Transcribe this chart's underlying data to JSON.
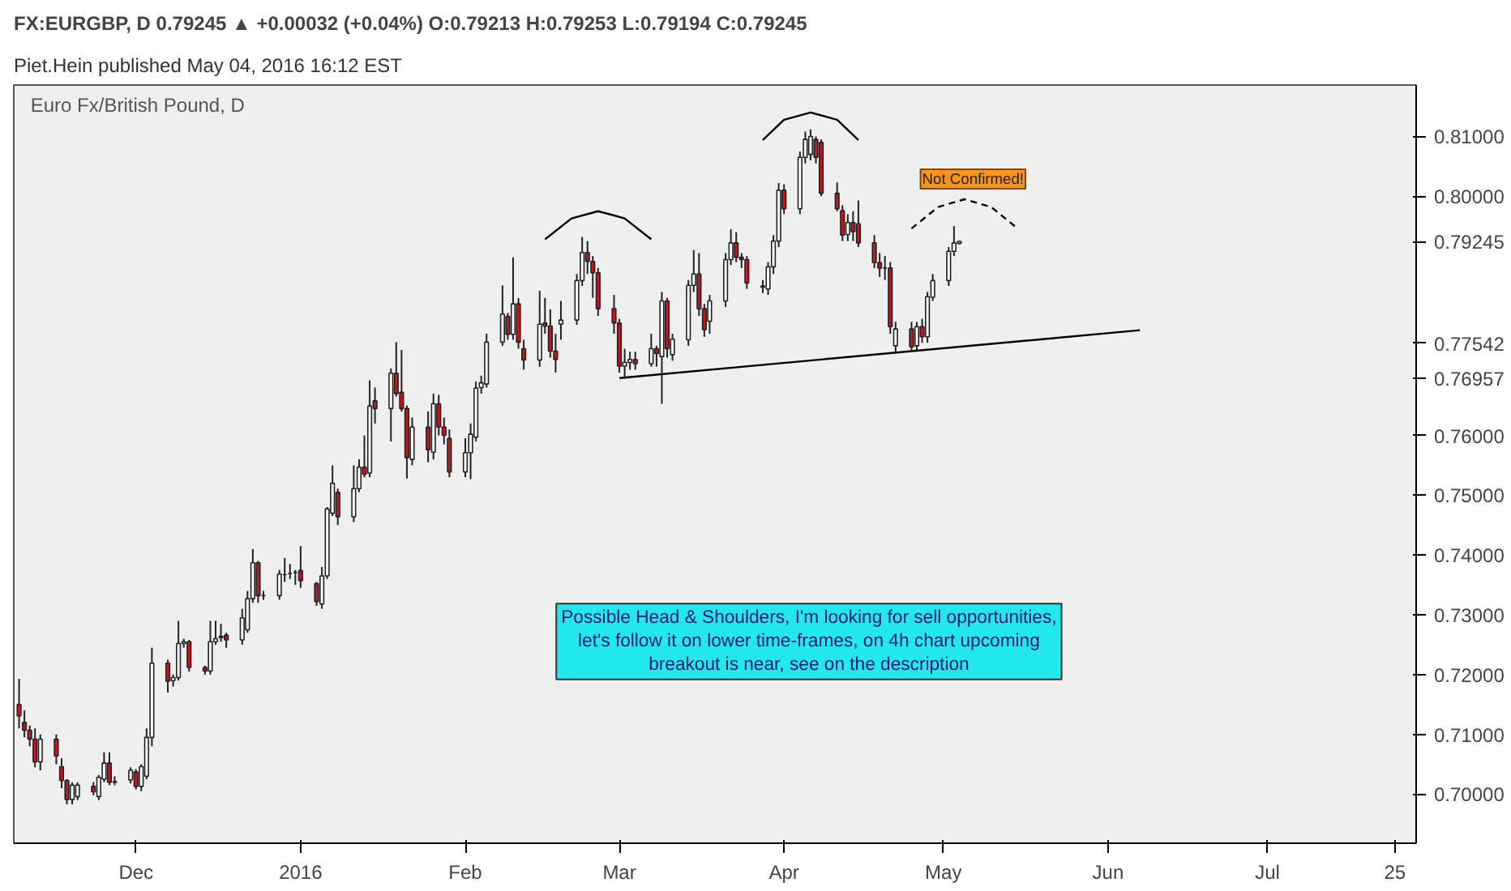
{
  "chart_data": {
    "type": "candlestick",
    "title": "FX:EURGBP, D  0.79245 ▲ +0.00032 (+0.04%)  O:0.79213  H:0.79253  L:0.79194  C:0.79245",
    "subtitle": "Euro Fx/British Pound, D",
    "x": [
      "2015-11-09",
      "2015-11-10",
      "2015-11-11",
      "2015-11-12",
      "2015-11-13",
      "2015-11-16",
      "2015-11-17",
      "2015-11-18",
      "2015-11-19",
      "2015-11-20",
      "2015-11-23",
      "2015-11-24",
      "2015-11-25",
      "2015-11-26",
      "2015-11-27",
      "2015-11-30",
      "2015-12-01",
      "2015-12-02",
      "2015-12-03",
      "2015-12-04",
      "2015-12-07",
      "2015-12-08",
      "2015-12-09",
      "2015-12-10",
      "2015-12-11",
      "2015-12-14",
      "2015-12-15",
      "2015-12-16",
      "2015-12-17",
      "2015-12-18",
      "2015-12-21",
      "2015-12-22",
      "2015-12-23",
      "2015-12-24",
      "2015-12-25",
      "2015-12-28",
      "2015-12-29",
      "2015-12-30",
      "2015-12-31",
      "2016-01-01",
      "2016-01-04",
      "2016-01-05",
      "2016-01-06",
      "2016-01-07",
      "2016-01-08",
      "2016-01-11",
      "2016-01-12",
      "2016-01-13",
      "2016-01-14",
      "2016-01-15",
      "2016-01-18",
      "2016-01-19",
      "2016-01-20",
      "2016-01-21",
      "2016-01-22",
      "2016-01-25",
      "2016-01-26",
      "2016-01-27",
      "2016-01-28",
      "2016-01-29",
      "2016-02-01",
      "2016-02-02",
      "2016-02-03",
      "2016-02-04",
      "2016-02-05",
      "2016-02-08",
      "2016-02-09",
      "2016-02-10",
      "2016-02-11",
      "2016-02-12",
      "2016-02-15",
      "2016-02-16",
      "2016-02-17",
      "2016-02-18",
      "2016-02-19",
      "2016-02-22",
      "2016-02-23",
      "2016-02-24",
      "2016-02-25",
      "2016-02-26",
      "2016-02-29",
      "2016-03-01",
      "2016-03-02",
      "2016-03-03",
      "2016-03-04",
      "2016-03-07",
      "2016-03-08",
      "2016-03-09",
      "2016-03-10",
      "2016-03-11",
      "2016-03-14",
      "2016-03-15",
      "2016-03-16",
      "2016-03-17",
      "2016-03-18",
      "2016-03-21",
      "2016-03-22",
      "2016-03-23",
      "2016-03-24",
      "2016-03-25",
      "2016-03-28",
      "2016-03-29",
      "2016-03-30",
      "2016-03-31",
      "2016-04-01",
      "2016-04-04",
      "2016-04-05",
      "2016-04-06",
      "2016-04-07",
      "2016-04-08",
      "2016-04-11",
      "2016-04-12",
      "2016-04-13",
      "2016-04-14",
      "2016-04-15",
      "2016-04-18",
      "2016-04-19",
      "2016-04-20",
      "2016-04-21",
      "2016-04-22",
      "2016-04-25",
      "2016-04-26",
      "2016-04-27",
      "2016-04-28",
      "2016-04-29",
      "2016-05-02",
      "2016-05-03",
      "2016-05-04"
    ],
    "ohlc": [
      [
        0.715,
        0.7193,
        0.711,
        0.7131
      ],
      [
        0.712,
        0.714,
        0.7095,
        0.7107
      ],
      [
        0.7107,
        0.7115,
        0.708,
        0.7092
      ],
      [
        0.7092,
        0.711,
        0.7045,
        0.7054
      ],
      [
        0.7054,
        0.71,
        0.704,
        0.7092
      ],
      [
        0.7092,
        0.71,
        0.705,
        0.7064
      ],
      [
        0.7046,
        0.706,
        0.701,
        0.7023
      ],
      [
        0.7023,
        0.7025,
        0.6983,
        0.6991
      ],
      [
        0.6991,
        0.702,
        0.6983,
        0.7015
      ],
      [
        0.6996,
        0.702,
        0.699,
        0.7015
      ],
      [
        0.7013,
        0.702,
        0.6998,
        0.7004
      ],
      [
        0.6996,
        0.7032,
        0.699,
        0.7028
      ],
      [
        0.7025,
        0.707,
        0.702,
        0.7052
      ],
      [
        0.7052,
        0.707,
        0.7015,
        0.702
      ],
      [
        0.7021,
        0.703,
        0.7015,
        0.702
      ],
      [
        0.7024,
        0.7045,
        0.7018,
        0.704
      ],
      [
        0.7037,
        0.7042,
        0.7008,
        0.7013
      ],
      [
        0.7013,
        0.705,
        0.7005,
        0.7046
      ],
      [
        0.703,
        0.711,
        0.7025,
        0.7095
      ],
      [
        0.7095,
        0.7245,
        0.708,
        0.7219
      ],
      [
        0.7219,
        0.7225,
        0.717,
        0.7189
      ],
      [
        0.719,
        0.72,
        0.718,
        0.7195
      ],
      [
        0.7195,
        0.729,
        0.719,
        0.7252
      ],
      [
        0.7252,
        0.726,
        0.7245,
        0.7255
      ],
      [
        0.7255,
        0.7258,
        0.7205,
        0.7212
      ],
      [
        0.7212,
        0.7215,
        0.72,
        0.7206
      ],
      [
        0.7206,
        0.729,
        0.72,
        0.7255
      ],
      [
        0.7255,
        0.729,
        0.725,
        0.726
      ],
      [
        0.7262,
        0.7285,
        0.7255,
        0.7264
      ],
      [
        0.7266,
        0.727,
        0.7245,
        0.7258
      ],
      [
        0.7258,
        0.731,
        0.725,
        0.7295
      ],
      [
        0.7275,
        0.734,
        0.727,
        0.7327
      ],
      [
        0.7327,
        0.741,
        0.732,
        0.7387
      ],
      [
        0.7387,
        0.739,
        0.732,
        0.7332
      ],
      [
        0.7332,
        0.734,
        0.7325,
        0.7332
      ],
      [
        0.7332,
        0.7375,
        0.7325,
        0.7368
      ],
      [
        0.7367,
        0.7395,
        0.7355,
        0.7367
      ],
      [
        0.7369,
        0.7385,
        0.736,
        0.7369
      ],
      [
        0.7371,
        0.7375,
        0.735,
        0.7371
      ],
      [
        0.7374,
        0.7415,
        0.7345,
        0.7357
      ],
      [
        0.7352,
        0.7355,
        0.7315,
        0.7322
      ],
      [
        0.7318,
        0.738,
        0.731,
        0.7365
      ],
      [
        0.7365,
        0.748,
        0.736,
        0.7477
      ],
      [
        0.747,
        0.755,
        0.7465,
        0.752
      ],
      [
        0.7505,
        0.7511,
        0.745,
        0.7464
      ],
      [
        0.7464,
        0.755,
        0.7455,
        0.7511
      ],
      [
        0.7511,
        0.756,
        0.7505,
        0.7547
      ],
      [
        0.7547,
        0.76,
        0.753,
        0.7535
      ],
      [
        0.7537,
        0.7692,
        0.753,
        0.7649
      ],
      [
        0.7658,
        0.768,
        0.762,
        0.7645
      ],
      [
        0.7645,
        0.7712,
        0.759,
        0.7704
      ],
      [
        0.7704,
        0.7756,
        0.7665,
        0.767
      ],
      [
        0.7672,
        0.7743,
        0.764,
        0.7645
      ],
      [
        0.7645,
        0.765,
        0.7528,
        0.7563
      ],
      [
        0.756,
        0.763,
        0.755,
        0.7614
      ],
      [
        0.7614,
        0.764,
        0.7555,
        0.7576
      ],
      [
        0.7572,
        0.767,
        0.756,
        0.7653
      ],
      [
        0.7653,
        0.7668,
        0.76,
        0.7614
      ],
      [
        0.7614,
        0.763,
        0.7585,
        0.76
      ],
      [
        0.7595,
        0.761,
        0.753,
        0.7539
      ],
      [
        0.7539,
        0.7595,
        0.753,
        0.7571
      ],
      [
        0.7571,
        0.762,
        0.7527,
        0.7602
      ],
      [
        0.7597,
        0.769,
        0.759,
        0.7679
      ],
      [
        0.768,
        0.77,
        0.767,
        0.7688
      ],
      [
        0.7686,
        0.777,
        0.768,
        0.7756
      ],
      [
        0.7756,
        0.7851,
        0.775,
        0.7803
      ],
      [
        0.7799,
        0.7805,
        0.776,
        0.7769
      ],
      [
        0.7769,
        0.7898,
        0.776,
        0.782
      ],
      [
        0.782,
        0.783,
        0.7745,
        0.7756
      ],
      [
        0.7745,
        0.776,
        0.771,
        0.7726
      ],
      [
        0.7726,
        0.7842,
        0.7715,
        0.7786
      ],
      [
        0.7788,
        0.783,
        0.777,
        0.7783
      ],
      [
        0.7783,
        0.7811,
        0.773,
        0.7741
      ],
      [
        0.7741,
        0.777,
        0.7705,
        0.7727
      ],
      [
        0.7786,
        0.7825,
        0.776,
        0.7793
      ],
      [
        0.7793,
        0.787,
        0.7785,
        0.7859
      ],
      [
        0.7859,
        0.7932,
        0.785,
        0.7906
      ],
      [
        0.7906,
        0.7925,
        0.787,
        0.7891
      ],
      [
        0.7891,
        0.79,
        0.783,
        0.7872
      ],
      [
        0.7872,
        0.788,
        0.78,
        0.7812
      ],
      [
        0.7812,
        0.7835,
        0.777,
        0.7788
      ],
      [
        0.7788,
        0.7795,
        0.7705,
        0.7716
      ],
      [
        0.7716,
        0.7745,
        0.7695,
        0.7722
      ],
      [
        0.7722,
        0.774,
        0.771,
        0.7727
      ],
      [
        0.7727,
        0.774,
        0.771,
        0.772
      ],
      [
        0.772,
        0.777,
        0.7715,
        0.7745
      ],
      [
        0.7745,
        0.775,
        0.7715,
        0.7737
      ],
      [
        0.7732,
        0.784,
        0.7653,
        0.7825
      ],
      [
        0.7825,
        0.783,
        0.773,
        0.7745
      ],
      [
        0.7735,
        0.777,
        0.7725,
        0.7761
      ],
      [
        0.776,
        0.786,
        0.775,
        0.7851
      ],
      [
        0.7851,
        0.791,
        0.784,
        0.787
      ],
      [
        0.787,
        0.7905,
        0.78,
        0.7812
      ],
      [
        0.7812,
        0.782,
        0.7765,
        0.7777
      ],
      [
        0.7791,
        0.7835,
        0.777,
        0.7825
      ],
      [
        0.7825,
        0.7905,
        0.7815,
        0.7894
      ],
      [
        0.7894,
        0.7945,
        0.7885,
        0.7922
      ],
      [
        0.7922,
        0.794,
        0.789,
        0.7898
      ],
      [
        0.7898,
        0.7905,
        0.788,
        0.7894
      ],
      [
        0.7894,
        0.79,
        0.7845,
        0.7855
      ],
      [
        0.785,
        0.786,
        0.7838,
        0.7848
      ],
      [
        0.7845,
        0.789,
        0.7835,
        0.7882
      ],
      [
        0.7882,
        0.7935,
        0.787,
        0.7925
      ],
      [
        0.7925,
        0.8022,
        0.7915,
        0.801
      ],
      [
        0.801,
        0.802,
        0.797,
        0.7979
      ],
      [
        0.7979,
        0.8075,
        0.797,
        0.8065
      ],
      [
        0.8065,
        0.8108,
        0.8055,
        0.8095
      ],
      [
        0.807,
        0.8112,
        0.806,
        0.81
      ],
      [
        0.8095,
        0.81,
        0.8055,
        0.8065
      ],
      [
        0.809,
        0.8095,
        0.8,
        0.8005
      ],
      [
        0.8005,
        0.8023,
        0.7975,
        0.7979
      ],
      [
        0.7976,
        0.7985,
        0.7925,
        0.7935
      ],
      [
        0.7936,
        0.797,
        0.7925,
        0.7956
      ],
      [
        0.7956,
        0.7975,
        0.7925,
        0.7941
      ],
      [
        0.7954,
        0.7993,
        0.7915,
        0.7922
      ],
      [
        0.7922,
        0.7935,
        0.788,
        0.7889
      ],
      [
        0.7889,
        0.7905,
        0.7865,
        0.788
      ],
      [
        0.788,
        0.79,
        0.786,
        0.788
      ],
      [
        0.788,
        0.789,
        0.777,
        0.7782
      ],
      [
        0.775,
        0.779,
        0.774,
        0.7778
      ],
      [
        0.7778,
        0.779,
        0.774,
        0.7748
      ],
      [
        0.775,
        0.779,
        0.7742,
        0.7782
      ],
      [
        0.7782,
        0.7795,
        0.7755,
        0.7765
      ],
      [
        0.7765,
        0.784,
        0.7755,
        0.7832
      ],
      [
        0.7831,
        0.787,
        0.7825,
        0.7859
      ],
      [
        0.7859,
        0.7915,
        0.785,
        0.7908
      ],
      [
        0.7908,
        0.795,
        0.79,
        0.7922
      ],
      [
        0.79213,
        0.79253,
        0.79194,
        0.79245
      ]
    ],
    "series": [
      {
        "type": "line",
        "color": "#000000",
        "line_style": "solid",
        "x": [
          "2016-03-01",
          "2016-06-07"
        ],
        "values": [
          0.7696,
          0.7776
        ]
      },
      {
        "type": "line",
        "color": "#000000",
        "line_style": "solid",
        "x": [
          "2016-02-16",
          "2016-02-21",
          "2016-02-26",
          "2016-03-02",
          "2016-03-07"
        ],
        "values": [
          0.7928,
          0.7963,
          0.7975,
          0.7963,
          0.7928
        ]
      },
      {
        "type": "line",
        "color": "#000000",
        "line_style": "solid",
        "x": [
          "2016-03-28",
          "2016-04-01",
          "2016-04-06",
          "2016-04-11",
          "2016-04-15"
        ],
        "values": [
          0.8094,
          0.8128,
          0.814,
          0.8128,
          0.8094
        ]
      },
      {
        "type": "line",
        "color": "#000000",
        "line_style": "dashed",
        "x": [
          "2016-04-25",
          "2016-04-30",
          "2016-05-05",
          "2016-05-10",
          "2016-05-15"
        ],
        "values": [
          0.7946,
          0.7982,
          0.7995,
          0.7982,
          0.7946
        ]
      }
    ],
    "xlim": [
      "2015-11-08",
      "2016-07-29"
    ],
    "xticks": [
      {
        "value": "2015-12-01",
        "label": "Dec"
      },
      {
        "value": "2016-01-01",
        "label": "2016"
      },
      {
        "value": "2016-02-01",
        "label": "Feb"
      },
      {
        "value": "2016-03-01",
        "label": "Mar"
      },
      {
        "value": "2016-04-01",
        "label": "Apr"
      },
      {
        "value": "2016-05-01",
        "label": "May"
      },
      {
        "value": "2016-06-01",
        "label": "Jun"
      },
      {
        "value": "2016-07-01",
        "label": "Jul"
      },
      {
        "value": "2016-07-25",
        "label": "25"
      }
    ],
    "ylim": [
      0.6918,
      0.8186
    ],
    "yticks": [
      {
        "value": 0.7,
        "label": "0.70000"
      },
      {
        "value": 0.71,
        "label": "0.71000"
      },
      {
        "value": 0.72,
        "label": "0.72000"
      },
      {
        "value": 0.73,
        "label": "0.73000"
      },
      {
        "value": 0.74,
        "label": "0.74000"
      },
      {
        "value": 0.75,
        "label": "0.75000"
      },
      {
        "value": 0.76,
        "label": "0.76000"
      },
      {
        "value": 0.76957,
        "label": "0.76957"
      },
      {
        "value": 0.77542,
        "label": "0.77542"
      },
      {
        "value": 0.79245,
        "label": "0.79245"
      },
      {
        "value": 0.8,
        "label": "0.80000"
      },
      {
        "value": 0.81,
        "label": "0.81000"
      }
    ],
    "annotations": [
      "Piet.Hein published May 04, 2016 16:12 EST",
      "Possible Head & Shoulders, I'm looking for sell opportunities,\nlet's follow it on lower time-frames, on 4h chart upcoming\nbreakout is near, see on the description",
      "Not Confirmed!"
    ]
  }
}
